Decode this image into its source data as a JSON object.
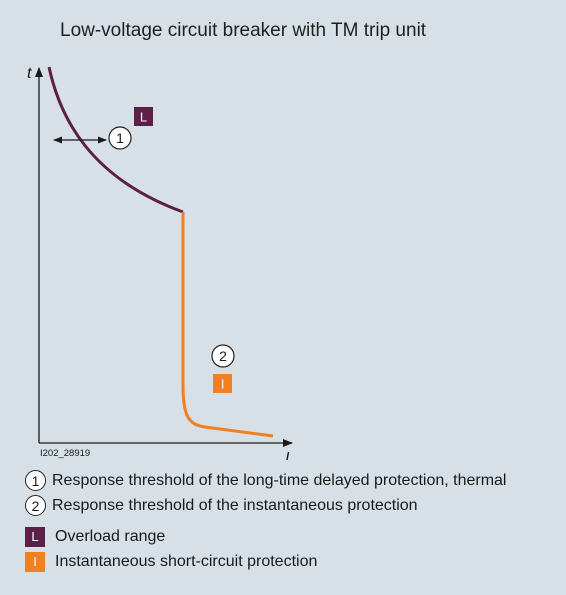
{
  "title": "Low-voltage circuit breaker with TM trip unit",
  "colors": {
    "background": "#d7e0e6",
    "overload": "#5b1f48",
    "instantaneous": "#f08020",
    "axis": "#1a1a1a"
  },
  "axes": {
    "y_label": "t",
    "x_label": "I"
  },
  "figure_id": "I202_28919",
  "markers": {
    "one": "1",
    "two": "2"
  },
  "badges": {
    "overload": "L",
    "instantaneous": "I"
  },
  "legend": [
    {
      "symbol": "1",
      "text": "Response threshold of the long-time delayed protection, thermal"
    },
    {
      "symbol": "2",
      "text": "Response threshold of the instantaneous protection"
    },
    {
      "symbol": "L",
      "text": "Overload range"
    },
    {
      "symbol": "I",
      "text": "Instantaneous short-circuit protection"
    }
  ]
}
